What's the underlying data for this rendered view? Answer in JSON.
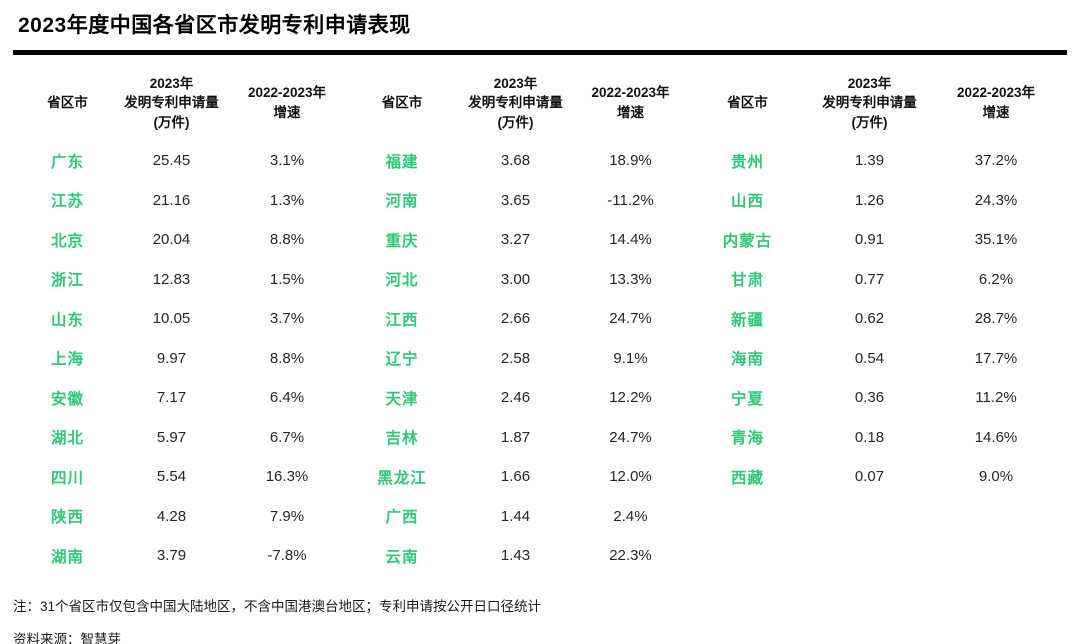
{
  "title": "2023年度中国各省区市发明专利申请表现",
  "colors": {
    "province_green": "#2FC877",
    "value_text": "#262626",
    "rule": "#000000",
    "background": "#ffffff"
  },
  "notes": {
    "footnote": "注：31个省区市仅包含中国大陆地区，不含中国港澳台地区；专利申请按公开日口径统计",
    "source": "资料来源：智慧芽"
  },
  "chart_data": {
    "type": "table",
    "title": "2023年度中国各省区市发明专利申请表现",
    "unit": "万件",
    "column_headers": {
      "province": "省区市",
      "volume": "2023年\n发明专利申请量\n(万件)",
      "growth": "2022-2023年\n增速"
    },
    "groups": [
      {
        "rows": [
          {
            "province": "广东",
            "volume": "25.45",
            "growth": "3.1%"
          },
          {
            "province": "江苏",
            "volume": "21.16",
            "growth": "1.3%"
          },
          {
            "province": "北京",
            "volume": "20.04",
            "growth": "8.8%"
          },
          {
            "province": "浙江",
            "volume": "12.83",
            "growth": "1.5%"
          },
          {
            "province": "山东",
            "volume": "10.05",
            "growth": "3.7%"
          },
          {
            "province": "上海",
            "volume": "9.97",
            "growth": "8.8%"
          },
          {
            "province": "安徽",
            "volume": "7.17",
            "growth": "6.4%"
          },
          {
            "province": "湖北",
            "volume": "5.97",
            "growth": "6.7%"
          },
          {
            "province": "四川",
            "volume": "5.54",
            "growth": "16.3%"
          },
          {
            "province": "陕西",
            "volume": "4.28",
            "growth": "7.9%"
          },
          {
            "province": "湖南",
            "volume": "3.79",
            "growth": "-7.8%"
          }
        ]
      },
      {
        "rows": [
          {
            "province": "福建",
            "volume": "3.68",
            "growth": "18.9%"
          },
          {
            "province": "河南",
            "volume": "3.65",
            "growth": "-11.2%"
          },
          {
            "province": "重庆",
            "volume": "3.27",
            "growth": "14.4%"
          },
          {
            "province": "河北",
            "volume": "3.00",
            "growth": "13.3%"
          },
          {
            "province": "江西",
            "volume": "2.66",
            "growth": "24.7%"
          },
          {
            "province": "辽宁",
            "volume": "2.58",
            "growth": "9.1%"
          },
          {
            "province": "天津",
            "volume": "2.46",
            "growth": "12.2%"
          },
          {
            "province": "吉林",
            "volume": "1.87",
            "growth": "24.7%"
          },
          {
            "province": "黑龙江",
            "volume": "1.66",
            "growth": "12.0%"
          },
          {
            "province": "广西",
            "volume": "1.44",
            "growth": "2.4%"
          },
          {
            "province": "云南",
            "volume": "1.43",
            "growth": "22.3%"
          }
        ]
      },
      {
        "rows": [
          {
            "province": "贵州",
            "volume": "1.39",
            "growth": "37.2%"
          },
          {
            "province": "山西",
            "volume": "1.26",
            "growth": "24.3%"
          },
          {
            "province": "内蒙古",
            "volume": "0.91",
            "growth": "35.1%"
          },
          {
            "province": "甘肃",
            "volume": "0.77",
            "growth": "6.2%"
          },
          {
            "province": "新疆",
            "volume": "0.62",
            "growth": "28.7%"
          },
          {
            "province": "海南",
            "volume": "0.54",
            "growth": "17.7%"
          },
          {
            "province": "宁夏",
            "volume": "0.36",
            "growth": "11.2%"
          },
          {
            "province": "青海",
            "volume": "0.18",
            "growth": "14.6%"
          },
          {
            "province": "西藏",
            "volume": "0.07",
            "growth": "9.0%"
          }
        ]
      }
    ]
  }
}
